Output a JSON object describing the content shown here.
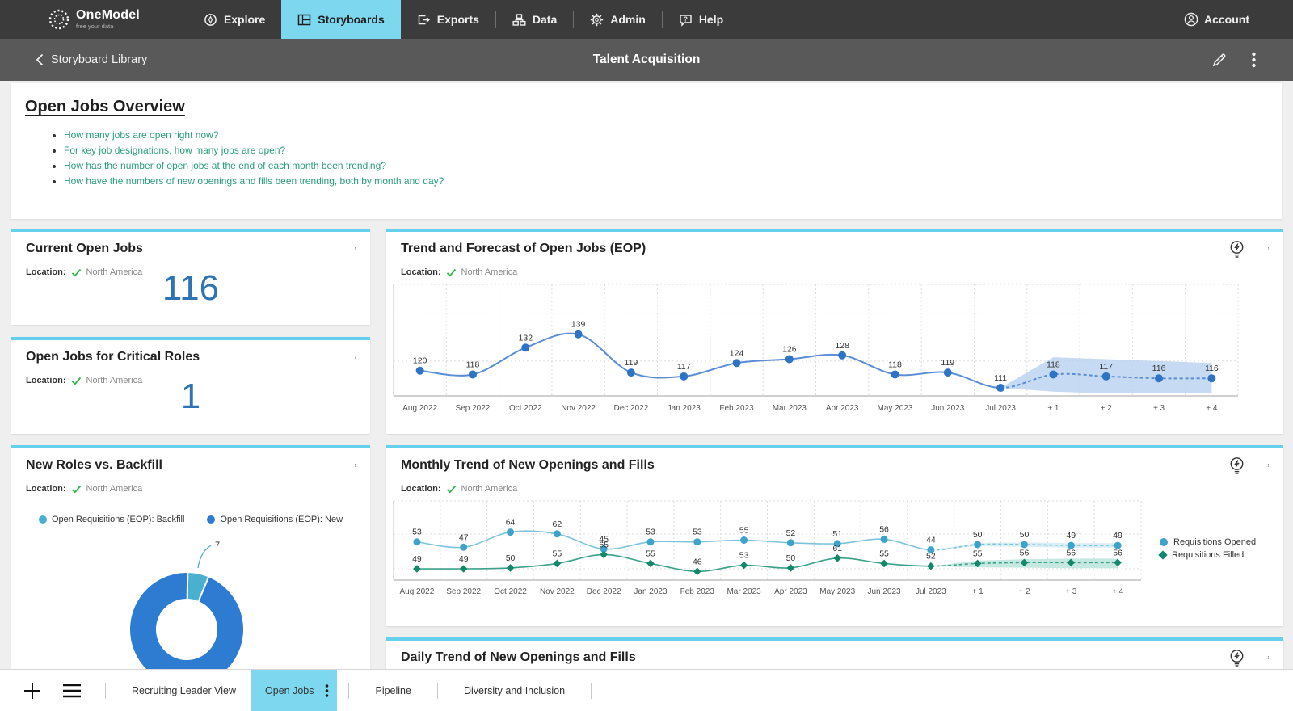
{
  "colors": {
    "accent_blue": "#7cd7ef",
    "card_border": "#65d0ec",
    "line_blue": "#5b8dd6",
    "dot_blue": "#2f74c4",
    "big_number_blue": "#2e74b5",
    "opened_series": "#3fa3c8",
    "filled_series": "#12876a",
    "question_teal": "#2a9d7c",
    "check_green": "#2eb24a",
    "forecast_band_blue": "#b9d1f0",
    "forecast_band_teal": "#9fd8cb",
    "donut_new": "#2e7cd1",
    "donut_backfill": "#4bafd0"
  },
  "nav": {
    "brand_name": "OneModel",
    "brand_tagline": "free your data",
    "items": [
      {
        "label": "Explore"
      },
      {
        "label": "Storyboards"
      },
      {
        "label": "Exports"
      },
      {
        "label": "Data"
      },
      {
        "label": "Admin"
      },
      {
        "label": "Help"
      }
    ],
    "account_label": "Account"
  },
  "subheader": {
    "back_label": "Storyboard Library",
    "title": "Talent Acquisition"
  },
  "overview": {
    "title": "Open Jobs Overview",
    "questions": [
      "How many jobs are open right now?",
      "For key job designations, how many jobs are open?",
      "How has the number of open jobs at the end of each month been trending?",
      "How have the numbers of new openings and fills been trending, both by month and day?"
    ]
  },
  "cards": {
    "current_open_jobs": {
      "title": "Current Open Jobs",
      "location_label": "Location:",
      "location_value": "North America",
      "value": "116"
    },
    "critical_roles": {
      "title": "Open Jobs for Critical Roles",
      "location_label": "Location:",
      "location_value": "North America",
      "value": "1"
    },
    "new_vs_backfill": {
      "title": "New Roles vs. Backfill",
      "location_label": "Location:",
      "location_value": "North America",
      "legend": [
        {
          "label": "Open Requisitions (EOP): Backfill"
        },
        {
          "label": "Open Requisitions (EOP): New"
        }
      ]
    },
    "trend_forecast": {
      "title": "Trend and Forecast of Open Jobs (EOP)",
      "location_label": "Location:",
      "location_value": "North America"
    },
    "monthly_trend": {
      "title": "Monthly Trend of New Openings and Fills",
      "location_label": "Location:",
      "location_value": "North America",
      "legend": [
        {
          "label": "Requisitions Opened"
        },
        {
          "label": "Requisitions Filled"
        }
      ]
    },
    "daily_trend": {
      "title": "Daily Trend of New Openings and Fills"
    }
  },
  "tabbar": {
    "tabs": [
      {
        "label": "Recruiting Leader View"
      },
      {
        "label": "Open Jobs"
      },
      {
        "label": "Pipeline"
      },
      {
        "label": "Diversity and Inclusion"
      }
    ],
    "active_index": 1
  },
  "chart_data": [
    {
      "type": "line",
      "name": "trend_and_forecast_open_jobs",
      "title": "Trend and Forecast of Open Jobs (EOP)",
      "categories": [
        "Aug 2022",
        "Sep 2022",
        "Oct 2022",
        "Nov 2022",
        "Dec 2022",
        "Jan 2023",
        "Feb 2023",
        "Mar 2023",
        "Apr 2023",
        "May 2023",
        "Jun 2023",
        "Jul 2023",
        "+ 1",
        "+ 2",
        "+ 3",
        "+ 4"
      ],
      "values": [
        120,
        118,
        132,
        139,
        119,
        117,
        124,
        126,
        128,
        118,
        119,
        111,
        118,
        117,
        116,
        116
      ],
      "forecast_start_index": 11,
      "forecast_band_upper": [
        111,
        127,
        126,
        125,
        124
      ],
      "forecast_band_lower": [
        111,
        109,
        108,
        107,
        106
      ],
      "ylim": [
        100,
        162
      ],
      "grid": "dashed",
      "legend_position": "none"
    },
    {
      "type": "pie",
      "name": "new_roles_vs_backfill",
      "title": "New Roles vs. Backfill",
      "labels": [
        "Open Requisitions (EOP): Backfill",
        "Open Requisitions (EOP): New"
      ],
      "values": [
        7,
        109
      ],
      "callout_value": "7",
      "callout_series": "Open Requisitions (EOP): Backfill",
      "donut": true
    },
    {
      "type": "line",
      "name": "monthly_trend_openings_fills",
      "title": "Monthly Trend of New Openings and Fills",
      "categories": [
        "Aug 2022",
        "Sep 2022",
        "Oct 2022",
        "Nov 2022",
        "Dec 2022",
        "Jan 2023",
        "Feb 2023",
        "Mar 2023",
        "Apr 2023",
        "May 2023",
        "Jun 2023",
        "Jul 2023",
        "+ 1",
        "+ 2",
        "+ 3",
        "+ 4"
      ],
      "series": [
        {
          "name": "Requisitions Opened",
          "values": [
            53,
            47,
            64,
            62,
            45,
            53,
            53,
            55,
            52,
            51,
            56,
            44,
            50,
            50,
            49,
            49
          ]
        },
        {
          "name": "Requisitions Filled",
          "values": [
            49,
            49,
            50,
            55,
            65,
            55,
            46,
            53,
            50,
            61,
            55,
            52,
            55,
            56,
            56,
            56
          ]
        }
      ],
      "forecast_start_index": 11,
      "panel_layout": "stacked_small_multiples",
      "legend_position": "right",
      "grid": "dashed"
    }
  ]
}
